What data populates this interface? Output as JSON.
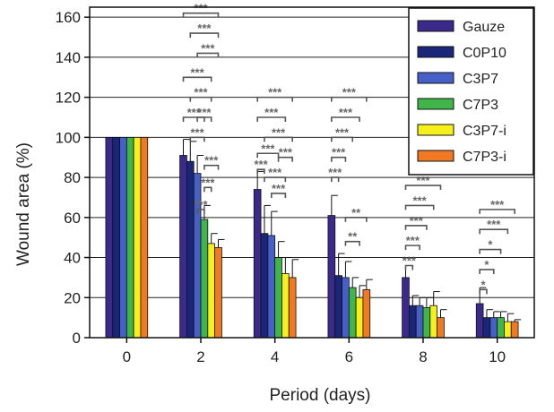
{
  "chart_data": {
    "type": "bar",
    "xlabel": "Period (days)",
    "ylabel": "Wound area (%)",
    "ylim": [
      0,
      165
    ],
    "yticks": [
      0,
      20,
      40,
      60,
      80,
      100,
      120,
      140,
      160
    ],
    "grid": true,
    "legend_position": "top-right",
    "categories": [
      "0",
      "2",
      "4",
      "6",
      "8",
      "10"
    ],
    "series": [
      {
        "name": "Gauze",
        "color": "#3b2a8c",
        "values": [
          100,
          91,
          74,
          61,
          30,
          17
        ],
        "errors": [
          0,
          8,
          9,
          10,
          6,
          8
        ]
      },
      {
        "name": "C0P10",
        "color": "#1a2677",
        "values": [
          100,
          88,
          52,
          31,
          16,
          10
        ],
        "errors": [
          0,
          10,
          14,
          11,
          5,
          4
        ]
      },
      {
        "name": "C3P7",
        "color": "#4660c8",
        "values": [
          100,
          82,
          51,
          30,
          16,
          10
        ],
        "errors": [
          0,
          9,
          12,
          8,
          4,
          3
        ]
      },
      {
        "name": "C7P3",
        "color": "#3fb54a",
        "values": [
          100,
          59,
          40,
          25,
          15,
          10
        ],
        "errors": [
          0,
          7,
          8,
          5,
          5,
          3
        ]
      },
      {
        "name": "C3P7-i",
        "color": "#f5ef1c",
        "values": [
          100,
          47,
          32,
          20,
          16,
          8
        ],
        "errors": [
          0,
          5,
          8,
          6,
          7,
          4
        ]
      },
      {
        "name": "C7P3-i",
        "color": "#f07a24",
        "values": [
          100,
          45,
          30,
          24,
          10,
          8
        ],
        "errors": [
          0,
          4,
          9,
          5,
          4,
          1
        ]
      }
    ],
    "significance": [
      {
        "cat": 1,
        "a": 0,
        "b": 5,
        "y": 162,
        "label": "***"
      },
      {
        "cat": 1,
        "a": 1,
        "b": 5,
        "y": 152,
        "label": "***"
      },
      {
        "cat": 1,
        "a": 2,
        "b": 5,
        "y": 142,
        "label": "***"
      },
      {
        "cat": 1,
        "a": 0,
        "b": 4,
        "y": 130,
        "label": "***"
      },
      {
        "cat": 1,
        "a": 1,
        "b": 4,
        "y": 120,
        "label": "***"
      },
      {
        "cat": 1,
        "a": 0,
        "b": 3,
        "y": 110,
        "label": "***"
      },
      {
        "cat": 1,
        "a": 2,
        "b": 4,
        "y": 110,
        "label": "***"
      },
      {
        "cat": 1,
        "a": 1,
        "b": 3,
        "y": 100,
        "label": "***"
      },
      {
        "cat": 1,
        "a": 3,
        "b": 5,
        "y": 86,
        "label": "***"
      },
      {
        "cat": 1,
        "a": 3,
        "b": 4,
        "y": 75,
        "label": "***"
      },
      {
        "cat": 1,
        "a": 2,
        "b": 3,
        "y": 64,
        "label": "***"
      },
      {
        "cat": 2,
        "a": 0,
        "b": 5,
        "y": 120,
        "label": "***"
      },
      {
        "cat": 2,
        "a": 0,
        "b": 4,
        "y": 110,
        "label": "***"
      },
      {
        "cat": 2,
        "a": 1,
        "b": 5,
        "y": 100,
        "label": "***"
      },
      {
        "cat": 2,
        "a": 0,
        "b": 3,
        "y": 92,
        "label": "***"
      },
      {
        "cat": 2,
        "a": 3,
        "b": 5,
        "y": 90,
        "label": "***"
      },
      {
        "cat": 2,
        "a": 1,
        "b": 4,
        "y": 80,
        "label": "***"
      },
      {
        "cat": 2,
        "a": 2,
        "b": 4,
        "y": 72,
        "label": "***"
      },
      {
        "cat": 2,
        "a": 0,
        "b": 1,
        "y": 84,
        "label": "***"
      },
      {
        "cat": 3,
        "a": 0,
        "b": 5,
        "y": 120,
        "label": "***"
      },
      {
        "cat": 3,
        "a": 0,
        "b": 4,
        "y": 110,
        "label": "***"
      },
      {
        "cat": 3,
        "a": 0,
        "b": 3,
        "y": 100,
        "label": "***"
      },
      {
        "cat": 3,
        "a": 0,
        "b": 2,
        "y": 90,
        "label": "***"
      },
      {
        "cat": 3,
        "a": 0,
        "b": 1,
        "y": 80,
        "label": "***"
      },
      {
        "cat": 3,
        "a": 2,
        "b": 5,
        "y": 60,
        "label": "**"
      },
      {
        "cat": 3,
        "a": 2,
        "b": 4,
        "y": 48,
        "label": "**"
      },
      {
        "cat": 4,
        "a": 0,
        "b": 5,
        "y": 76,
        "label": "***"
      },
      {
        "cat": 4,
        "a": 0,
        "b": 4,
        "y": 66,
        "label": "***"
      },
      {
        "cat": 4,
        "a": 0,
        "b": 3,
        "y": 56,
        "label": "***"
      },
      {
        "cat": 4,
        "a": 0,
        "b": 2,
        "y": 46,
        "label": "***"
      },
      {
        "cat": 4,
        "a": 0,
        "b": 1,
        "y": 36,
        "label": "***"
      },
      {
        "cat": 5,
        "a": 0,
        "b": 5,
        "y": 64,
        "label": "***"
      },
      {
        "cat": 5,
        "a": 0,
        "b": 4,
        "y": 54,
        "label": "***"
      },
      {
        "cat": 5,
        "a": 0,
        "b": 3,
        "y": 44,
        "label": "*"
      },
      {
        "cat": 5,
        "a": 0,
        "b": 2,
        "y": 34,
        "label": "*"
      },
      {
        "cat": 5,
        "a": 0,
        "b": 1,
        "y": 24,
        "label": "*"
      }
    ]
  }
}
